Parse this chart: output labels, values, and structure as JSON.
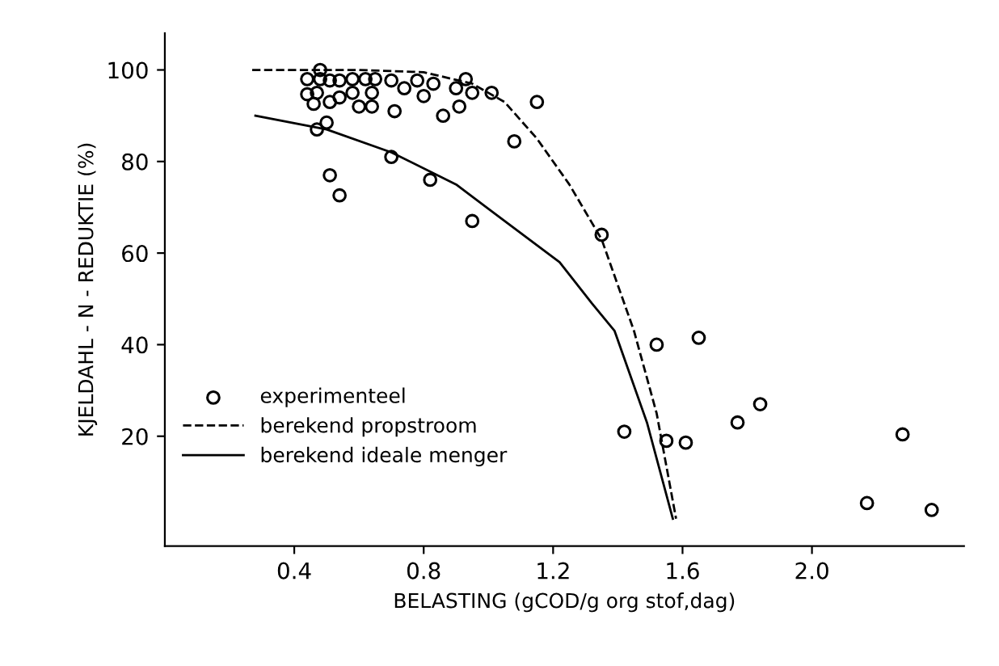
{
  "chart_data": {
    "type": "scatter",
    "xlabel": "BELASTING (gCOD/g org stof,dag)",
    "ylabel": "KJELDAHL - N - REDUKTIE (%)",
    "xlim": [
      0,
      2.47
    ],
    "ylim": [
      -4,
      108
    ],
    "xticks": [
      0.4,
      0.8,
      1.2,
      1.6,
      {
        "value": 2.0,
        "label": "2.0"
      }
    ],
    "yticks": [
      20,
      40,
      60,
      80,
      100
    ],
    "grid": false,
    "legend": "bottom left",
    "series": [
      {
        "name": "experimenteel",
        "color": "#000000",
        "marker": "circle",
        "x": [
          0.48,
          0.44,
          0.48,
          0.51,
          0.54,
          0.58,
          0.62,
          0.65,
          0.7,
          0.74,
          0.78,
          0.8,
          0.83,
          0.9,
          0.93,
          0.95,
          1.01,
          1.15,
          0.44,
          0.47,
          0.51,
          0.54,
          0.58,
          0.6,
          0.64,
          0.64,
          0.46,
          0.71,
          0.86,
          0.91,
          0.47,
          0.5,
          1.08,
          0.7,
          0.82,
          0.51,
          0.54,
          0.95,
          1.35,
          1.52,
          1.65,
          1.42,
          1.55,
          1.61,
          1.77,
          1.84,
          2.28,
          2.17,
          2.37
        ],
        "values": [
          100,
          98,
          98,
          97.7,
          97.7,
          98,
          98,
          98,
          97.7,
          96,
          97.7,
          94.3,
          97,
          96,
          98,
          95,
          95,
          93,
          94.7,
          95,
          93,
          94,
          95,
          92,
          95,
          92,
          92.6,
          91,
          90,
          92,
          87,
          88.5,
          84.4,
          81,
          76,
          77,
          72.6,
          67,
          64,
          40,
          41.5,
          21,
          19,
          18.6,
          23,
          27,
          20.4,
          5.4,
          3.9
        ]
      },
      {
        "name": "berekend propstroom",
        "type": "line",
        "color": "#000000",
        "line_style": "dashed",
        "marker": "none",
        "x": [
          0.27,
          0.6,
          0.8,
          0.95,
          1.05,
          1.15,
          1.25,
          1.35,
          1.45,
          1.52,
          1.58
        ],
        "values": [
          100,
          100,
          99.5,
          97,
          93,
          85,
          75,
          63,
          43,
          25,
          2
        ]
      },
      {
        "name": "berekend ideale menger",
        "type": "line",
        "color": "#000000",
        "line_style": "solid",
        "marker": "none",
        "x": [
          0.28,
          0.5,
          0.7,
          0.9,
          1.05,
          1.22,
          1.32,
          1.39,
          1.49,
          1.57
        ],
        "values": [
          90,
          87,
          82,
          75,
          67,
          58,
          49,
          43,
          23,
          2
        ]
      }
    ]
  }
}
